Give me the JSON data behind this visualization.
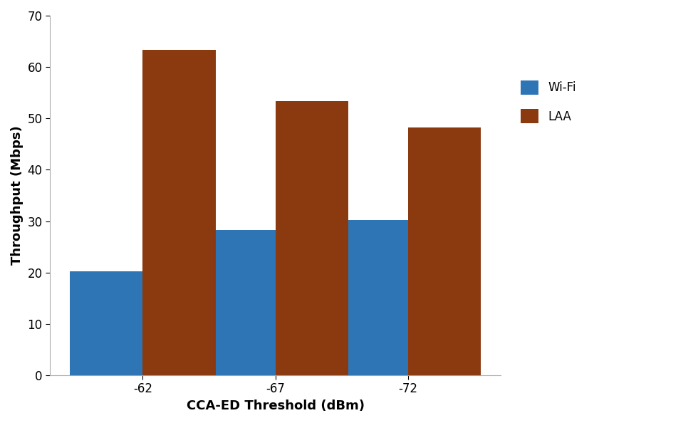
{
  "categories": [
    "-62",
    "-67",
    "-72"
  ],
  "wifi_values": [
    20.3,
    28.3,
    30.2
  ],
  "laa_values": [
    63.3,
    53.3,
    48.2
  ],
  "wifi_color": "#2E75B6",
  "laa_color": "#8B3A0F",
  "xlabel": "CCA-ED Threshold (dBm)",
  "ylabel": "Throughput (Mbps)",
  "ylim": [
    0,
    70
  ],
  "yticks": [
    0,
    10,
    20,
    30,
    40,
    50,
    60,
    70
  ],
  "legend_labels": [
    "Wi-Fi",
    "LAA"
  ],
  "bar_width": 0.55,
  "axis_label_fontsize": 13,
  "tick_fontsize": 12,
  "legend_fontsize": 12,
  "background_color": "#ffffff"
}
